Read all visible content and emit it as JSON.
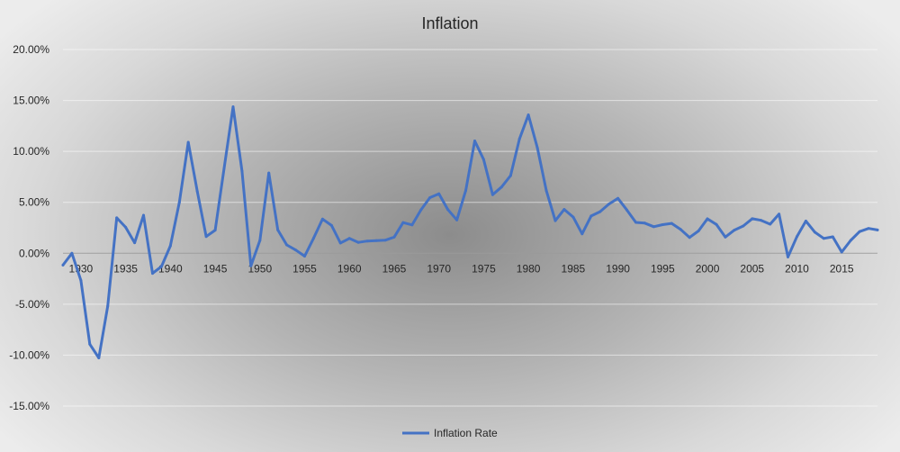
{
  "chart_data": {
    "type": "line",
    "title": "Inflation",
    "xlabel": "",
    "ylabel": "",
    "ylim": [
      -0.15,
      0.2
    ],
    "y_ticks": [
      0.2,
      0.15,
      0.1,
      0.05,
      0.0,
      -0.05,
      -0.1,
      -0.15
    ],
    "y_tick_labels": [
      "20.00%",
      "15.00%",
      "10.00%",
      "5.00%",
      "0.00%",
      "-5.00%",
      "-10.00%",
      "-15.00%"
    ],
    "x_range": [
      1928,
      2019
    ],
    "x_ticks": [
      1930,
      1935,
      1940,
      1945,
      1950,
      1955,
      1960,
      1965,
      1970,
      1975,
      1980,
      1985,
      1990,
      1995,
      2000,
      2005,
      2010,
      2015
    ],
    "x_tick_labels": [
      "1930",
      "1935",
      "1940",
      "1945",
      "1950",
      "1955",
      "1960",
      "1965",
      "1970",
      "1975",
      "1980",
      "1985",
      "1990",
      "1995",
      "2000",
      "2005",
      "2010",
      "2015"
    ],
    "grid": true,
    "legend_position": "bottom",
    "color": "#4472C4",
    "x": [
      1928,
      1929,
      1930,
      1931,
      1932,
      1933,
      1934,
      1935,
      1936,
      1937,
      1938,
      1939,
      1940,
      1941,
      1942,
      1943,
      1944,
      1945,
      1946,
      1947,
      1948,
      1949,
      1950,
      1951,
      1952,
      1953,
      1954,
      1955,
      1956,
      1957,
      1958,
      1959,
      1960,
      1961,
      1962,
      1963,
      1964,
      1965,
      1966,
      1967,
      1968,
      1969,
      1970,
      1971,
      1972,
      1973,
      1974,
      1975,
      1976,
      1977,
      1978,
      1979,
      1980,
      1981,
      1982,
      1983,
      1984,
      1985,
      1986,
      1987,
      1988,
      1989,
      1990,
      1991,
      1992,
      1993,
      1994,
      1995,
      1996,
      1997,
      1998,
      1999,
      2000,
      2001,
      2002,
      2003,
      2004,
      2005,
      2006,
      2007,
      2008,
      2009,
      2010,
      2011,
      2012,
      2013,
      2014,
      2015,
      2016,
      2017,
      2018,
      2019
    ],
    "series": [
      {
        "name": "Inflation Rate",
        "values": [
          -0.0116,
          0.0,
          -0.0267,
          -0.0893,
          -0.1027,
          -0.0519,
          0.0348,
          0.0255,
          0.0103,
          0.0373,
          -0.0197,
          -0.013,
          0.0072,
          0.05,
          0.109,
          0.0608,
          0.0164,
          0.0227,
          0.0833,
          0.1438,
          0.0807,
          -0.0124,
          0.0126,
          0.0788,
          0.0229,
          0.0082,
          0.0032,
          -0.0028,
          0.0149,
          0.0336,
          0.0273,
          0.0101,
          0.0146,
          0.0107,
          0.012,
          0.0124,
          0.0128,
          0.0159,
          0.0301,
          0.0278,
          0.0427,
          0.0546,
          0.0584,
          0.0429,
          0.0327,
          0.0616,
          0.1103,
          0.092,
          0.0575,
          0.065,
          0.0762,
          0.1122,
          0.1358,
          0.1035,
          0.0616,
          0.032,
          0.043,
          0.0355,
          0.0191,
          0.0366,
          0.0408,
          0.0483,
          0.0539,
          0.0425,
          0.0303,
          0.0296,
          0.0261,
          0.0281,
          0.0293,
          0.0234,
          0.0155,
          0.0219,
          0.0338,
          0.0283,
          0.0159,
          0.0227,
          0.0268,
          0.0339,
          0.0323,
          0.0285,
          0.0384,
          -0.0036,
          0.0164,
          0.0316,
          0.0207,
          0.0146,
          0.0162,
          0.0012,
          0.0126,
          0.0213,
          0.0244,
          0.0229
        ]
      }
    ]
  }
}
